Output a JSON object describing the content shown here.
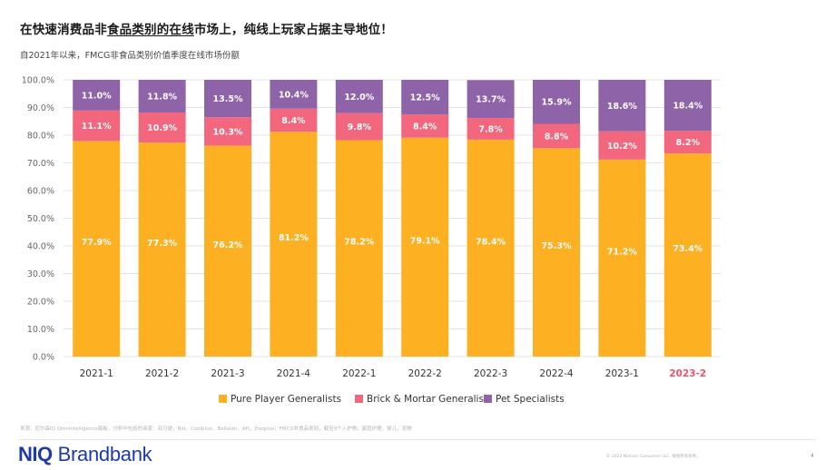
{
  "header": {
    "title_pre": "在快速消费品非",
    "title_hl": "食品类别的在线",
    "title_post": "市场上，纯线上玩家占据主导地位！",
    "subtitle": "自2021年以来，FMCG非食品类别价值季度在线市场份额"
  },
  "chart_data": {
    "type": "bar",
    "stacked": true,
    "categories": [
      "2021-1",
      "2021-2",
      "2021-3",
      "2021-4",
      "2022-1",
      "2022-2",
      "2022-3",
      "2022-4",
      "2023-1",
      "2023-2"
    ],
    "highlight_category": "2023-2",
    "series": [
      {
        "name": "Pure Player Generalists",
        "color": "#FDB022",
        "values": [
          77.9,
          77.3,
          76.2,
          81.2,
          78.2,
          79.1,
          78.4,
          75.3,
          71.2,
          73.4
        ],
        "labels": [
          "77.9%",
          "77.3%",
          "76.2%",
          "81.2%",
          "78.2%",
          "79.1%",
          "78.4%",
          "75.3%",
          "71.2%",
          "73.4%"
        ]
      },
      {
        "name": "Brick & Mortar Generalists",
        "color": "#F2667E",
        "values": [
          11.1,
          10.9,
          10.3,
          8.4,
          9.8,
          8.4,
          7.8,
          8.8,
          10.2,
          8.2
        ],
        "labels": [
          "11.1%",
          "10.9%",
          "10.3%",
          "8.4%",
          "9.8%",
          "8.4%",
          "7.8%",
          "8.8%",
          "10.2%",
          "8.2%"
        ]
      },
      {
        "name": "Pet Specialists",
        "color": "#8E63A8",
        "values": [
          11.0,
          11.8,
          13.5,
          10.4,
          12.0,
          12.5,
          13.7,
          15.9,
          18.6,
          18.4
        ],
        "labels": [
          "11.0%",
          "11.8%",
          "13.5%",
          "10.4%",
          "12.0%",
          "12.5%",
          "13.7%",
          "15.9%",
          "18.6%",
          "18.4%"
        ]
      }
    ],
    "ylim": [
      0,
      100
    ],
    "y_ticks": [
      0,
      10,
      20,
      30,
      40,
      50,
      60,
      70,
      80,
      90,
      100
    ],
    "y_tick_labels": [
      "0.0%",
      "10.0%",
      "20.0%",
      "30.0%",
      "40.0%",
      "50.0%",
      "60.0%",
      "70.0%",
      "80.0%",
      "90.0%",
      "100.0%"
    ],
    "grid": true,
    "legend_position": "bottom",
    "xlabel": "",
    "ylabel": "",
    "title": ""
  },
  "footer": {
    "source": "来源：尼尔森IQ Omnintelligence面板，分析中包括的商家：亚马逊，Bol，Coolblue，Bellalan，AH，Zooplus；FMCG非食品类别，截至9个入护物，家庭护理，婴儿，宠物",
    "brand_niq": "NIQ",
    "brand_name": "Brandbank",
    "copyright": "© 2023 Nielsen Consumer LLC. 保留所有权利。",
    "page": "4"
  }
}
